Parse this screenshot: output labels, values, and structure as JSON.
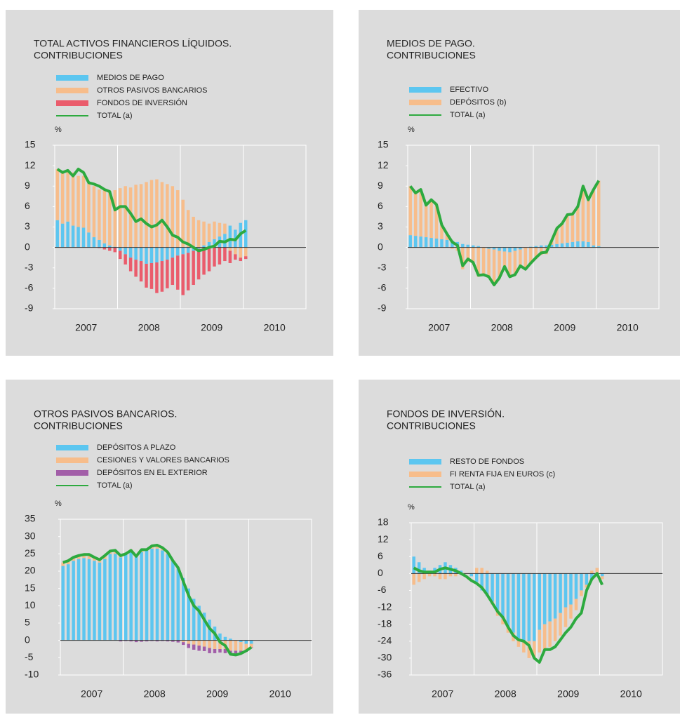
{
  "chart_data": [
    {
      "type": "bar",
      "title": [
        "TOTAL ACTIVOS FINANCIEROS LÍQUIDOS.",
        "CONTRIBUCIONES"
      ],
      "y_label": "%",
      "x_labels": [
        "2007",
        "2008",
        "2009",
        "2010"
      ],
      "ylim": [
        -9,
        15
      ],
      "yticks": [
        -9,
        -6,
        -3,
        0,
        3,
        6,
        9,
        12,
        15
      ],
      "series": [
        {
          "name": "MEDIOS DE PAGO",
          "color": "#5cc6f0",
          "values": [
            4,
            3.5,
            3.8,
            3.2,
            3.0,
            2.9,
            2.2,
            1.5,
            1.1,
            0.6,
            0.3,
            0.1,
            -0.5,
            -1,
            -1.5,
            -1.8,
            -2,
            -2.4,
            -2.3,
            -2.2,
            -2,
            -1.8,
            -1.5,
            -1.2,
            -1,
            -0.8,
            -0.5,
            -0.2,
            0.3,
            0.8,
            1.2,
            1.6,
            2,
            3.2,
            2.6,
            3.6,
            4
          ]
        },
        {
          "name": "OTROS PASIVOS BANCARIOS",
          "color": "#f7bd8b",
          "values": [
            7.5,
            7.5,
            7.3,
            7.8,
            7.5,
            7.6,
            7.3,
            7.5,
            7.4,
            7.8,
            8,
            8.3,
            8.7,
            9,
            8.8,
            9.2,
            9.3,
            9.6,
            9.9,
            10,
            9.6,
            9.3,
            9,
            8.4,
            7,
            5.5,
            4.5,
            4,
            3.5,
            2.7,
            2.6,
            2,
            1.5,
            -0.5,
            -1,
            -1.5,
            -1.3
          ]
        },
        {
          "name": "FONDOS DE INVERSIÓN",
          "color": "#ea5c6c",
          "values": [
            0,
            0,
            0,
            0,
            0,
            0,
            0,
            0,
            -0.1,
            -0.3,
            -0.5,
            -0.7,
            -1.2,
            -1.5,
            -2,
            -2.5,
            -3,
            -3.5,
            -3.8,
            -4.5,
            -4.5,
            -4.2,
            -4,
            -5,
            -6,
            -5.5,
            -5,
            -4.5,
            -4,
            -3.5,
            -2.8,
            -2.5,
            -2,
            -1.8,
            -0.8,
            -0.5,
            -0.4
          ]
        },
        {
          "name": "TOTAL (a)",
          "color": "#2daa3f",
          "type": "line",
          "values": [
            11.5,
            11,
            11.3,
            10.5,
            11.5,
            11,
            9.5,
            9.3,
            9,
            8.5,
            8.2,
            5.5,
            6,
            6,
            5,
            3.8,
            4.2,
            3.5,
            3,
            3.3,
            4,
            3,
            1.8,
            1.5,
            0.8,
            0.5,
            0,
            -0.5,
            -0.3,
            0,
            0.2,
            0.9,
            0.8,
            1.2,
            1.1,
            2,
            2.5
          ]
        }
      ]
    },
    {
      "type": "bar",
      "title": [
        "MEDIOS DE PAGO.",
        "CONTRIBUCIONES"
      ],
      "y_label": "%",
      "x_labels": [
        "2007",
        "2008",
        "2009",
        "2010"
      ],
      "ylim": [
        -9,
        15
      ],
      "yticks": [
        -9,
        -6,
        -3,
        0,
        3,
        6,
        9,
        12,
        15
      ],
      "series": [
        {
          "name": "EFECTIVO",
          "color": "#5cc6f0",
          "values": [
            1.8,
            1.7,
            1.6,
            1.5,
            1.4,
            1.3,
            1.2,
            1.1,
            1.0,
            0.8,
            0.5,
            0.4,
            0.3,
            0.2,
            0,
            -0.2,
            -0.3,
            -0.5,
            -0.6,
            -0.7,
            -0.5,
            -0.3,
            0,
            0.1,
            0.2,
            0.3,
            0.3,
            0.4,
            0.5,
            0.6,
            0.7,
            0.8,
            0.9,
            0.9,
            0.8,
            0.3,
            0.2
          ]
        },
        {
          "name": "DEPÓSITOS (b)",
          "color": "#f7bd8b",
          "values": [
            7.2,
            6.3,
            6.9,
            4.7,
            5.6,
            5,
            2.1,
            0.9,
            -0.2,
            -0.5,
            -3.2,
            -2.1,
            -2.5,
            -4.3,
            -4,
            -4.1,
            -5.2,
            -4,
            -2.2,
            -3.6,
            -3.5,
            -2.4,
            -3.2,
            -2.4,
            -1.7,
            -1.1,
            -1,
            0.6,
            2.3,
            2.9,
            4.1,
            4.1,
            5.1,
            8.1,
            6.2,
            8.2,
            9.6
          ]
        },
        {
          "name": "TOTAL (a)",
          "color": "#2daa3f",
          "type": "line",
          "values": [
            9,
            8,
            8.5,
            6.2,
            7,
            6.3,
            3.3,
            2,
            0.8,
            0.3,
            -2.7,
            -1.7,
            -2.2,
            -4.1,
            -4,
            -4.3,
            -5.5,
            -4.5,
            -2.8,
            -4.3,
            -4,
            -2.7,
            -3.2,
            -2.3,
            -1.5,
            -0.8,
            -0.7,
            1,
            2.8,
            3.5,
            4.8,
            4.9,
            6,
            9,
            7,
            8.5,
            9.8
          ]
        }
      ]
    },
    {
      "type": "bar",
      "title": [
        "OTROS PASIVOS BANCARIOS.",
        "CONTRIBUCIONES"
      ],
      "y_label": "%",
      "x_labels": [
        "2007",
        "2008",
        "2009",
        "2010"
      ],
      "ylim": [
        -10,
        35
      ],
      "yticks": [
        -10,
        -5,
        0,
        5,
        10,
        15,
        20,
        25,
        30,
        35
      ],
      "series": [
        {
          "name": "DEPÓSITOS A PLAZO",
          "color": "#5cc6f0",
          "values": [
            21.5,
            22,
            23,
            23.5,
            23.8,
            23.5,
            23,
            22.5,
            23.5,
            25,
            25,
            24,
            25,
            25.5,
            24.5,
            25.5,
            26,
            26.5,
            26.5,
            26,
            25,
            23,
            21,
            18,
            15,
            12,
            10,
            8,
            6,
            4,
            2,
            1,
            0.5,
            0,
            -0.5,
            -1,
            -1
          ]
        },
        {
          "name": "CESIONES Y VALORES BANCARIOS",
          "color": "#f7bd8b",
          "values": [
            1,
            1,
            1,
            1,
            1,
            1,
            1,
            0.8,
            1,
            0.8,
            1,
            0.5,
            0.3,
            0.8,
            0.2,
            0.8,
            0.5,
            1,
            1.2,
            1,
            0.5,
            0.2,
            0,
            -0.5,
            -1,
            -1.2,
            -1.5,
            -1.8,
            -2.2,
            -2.5,
            -2.5,
            -2.5,
            -3,
            -3,
            -2.5,
            -2,
            -1
          ]
        },
        {
          "name": "DEPÓSITOS EN EL EXTERIOR",
          "color": "#a25ea8",
          "values": [
            0,
            0,
            0,
            0,
            0,
            0,
            0,
            0,
            0,
            0,
            0,
            -0.3,
            -0.2,
            -0.3,
            -0.5,
            -0.4,
            -0.3,
            -0.2,
            -0.3,
            -0.2,
            -0.3,
            -0.4,
            -0.6,
            -0.8,
            -1.2,
            -1.5,
            -1.5,
            -1.3,
            -1.5,
            -1.2,
            -1,
            -1.2,
            -1,
            -0.8,
            -0.5,
            -0.3,
            -0.2
          ]
        },
        {
          "name": "TOTAL (a)",
          "color": "#2daa3f",
          "type": "line",
          "values": [
            22.5,
            23,
            24,
            24.5,
            24.8,
            24.8,
            24,
            23.3,
            24.5,
            25.8,
            26,
            24.5,
            25,
            26,
            24.3,
            26.2,
            26.2,
            27.3,
            27.5,
            26.8,
            25.5,
            23,
            21,
            17,
            13,
            10,
            8.5,
            6,
            3.5,
            2,
            -0.5,
            -1.5,
            -4,
            -4.2,
            -3.8,
            -3,
            -2
          ]
        }
      ]
    },
    {
      "type": "bar",
      "title": [
        "FONDOS DE INVERSIÓN.",
        "CONTRIBUCIONES"
      ],
      "y_label": "%",
      "x_labels": [
        "2007",
        "2008",
        "2009",
        "2010"
      ],
      "ylim": [
        -36,
        18
      ],
      "yticks": [
        -36,
        -30,
        -24,
        -18,
        -12,
        -6,
        0,
        6,
        12,
        18
      ],
      "series": [
        {
          "name": "RESTO DE FONDOS",
          "color": "#5cc6f0",
          "values": [
            6,
            4,
            2,
            1,
            2,
            3,
            4,
            3,
            2,
            1,
            0,
            -1,
            -3,
            -6,
            -8,
            -10,
            -13,
            -16,
            -19,
            -21,
            -23,
            -24,
            -24,
            -24,
            -20,
            -18,
            -17,
            -16,
            -14,
            -12,
            -11,
            -9,
            -6,
            -4,
            -2,
            -1,
            -1
          ]
        },
        {
          "name": "FI RENTA FIJA EN EUROS (c)",
          "color": "#f7bd8b",
          "values": [
            -4,
            -3,
            -2,
            -1,
            -1,
            -2,
            -2,
            -1,
            -1,
            0,
            0,
            0,
            2,
            2,
            1,
            -1,
            -2,
            -2,
            -2,
            -3,
            -3,
            -4,
            -6,
            -6,
            -8,
            -9,
            -9,
            -8,
            -8,
            -7,
            -5,
            -4,
            -2,
            -1,
            1,
            2,
            -1
          ]
        },
        {
          "name": "TOTAL (a)",
          "color": "#2daa3f",
          "type": "line",
          "values": [
            2,
            1,
            0.5,
            0.5,
            0.5,
            1.5,
            2,
            1.5,
            1,
            0,
            -1,
            -2.5,
            -3.5,
            -5,
            -7.5,
            -10.5,
            -13.5,
            -15.5,
            -19,
            -22,
            -23.5,
            -24,
            -25.5,
            -30,
            -31.5,
            -27,
            -27,
            -26,
            -23.5,
            -21,
            -19,
            -16,
            -14,
            -6,
            -2,
            0,
            -4
          ]
        }
      ]
    }
  ]
}
